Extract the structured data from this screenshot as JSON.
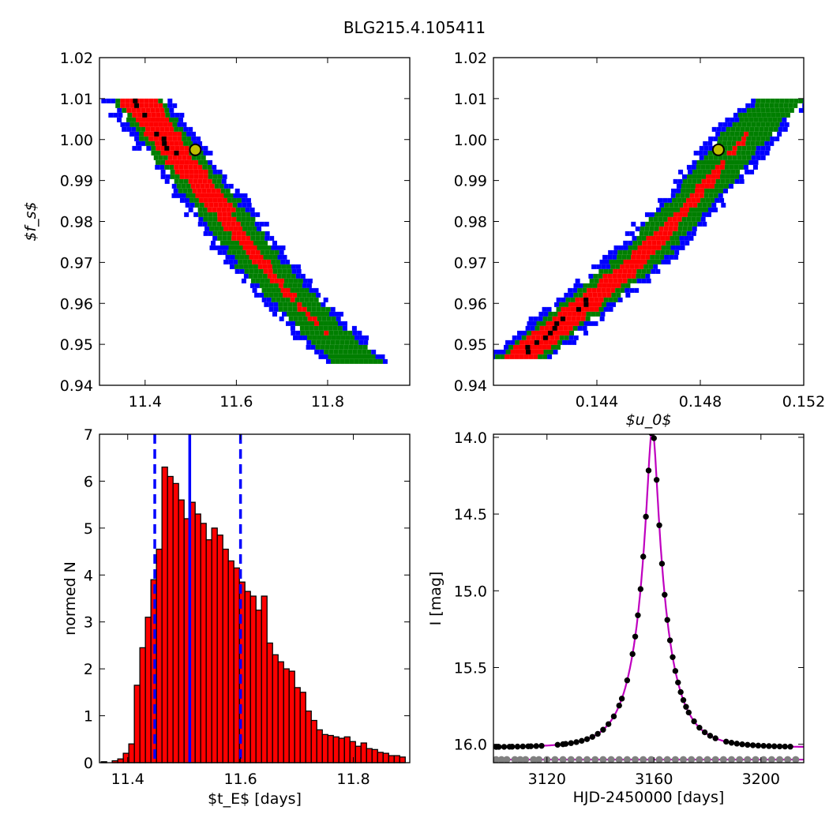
{
  "title": "BLG215.4.105411",
  "colors": {
    "blue": "#0000ff",
    "green": "#007f00",
    "red": "#ff0000",
    "black": "#000000",
    "magenta": "#bf00bf",
    "gray": "#808080",
    "marker_face": "#bfbf00"
  },
  "chart_data": [
    {
      "id": "fs_vs_tE",
      "type": "heatmap",
      "title": "",
      "xlabel": "",
      "ylabel": "$f_s$",
      "xlim": [
        11.3,
        11.98
      ],
      "ylim": [
        0.94,
        1.02
      ],
      "xticks": [
        11.4,
        11.6,
        11.8
      ],
      "xticklabels": [
        "11.4",
        "11.6",
        "11.8"
      ],
      "yticks": [
        0.94,
        0.95,
        0.96,
        0.97,
        0.98,
        0.99,
        1.0,
        1.01,
        1.02
      ],
      "yticklabels": [
        "0.94",
        "0.95",
        "0.96",
        "0.97",
        "0.98",
        "0.99",
        "1.00",
        "1.01",
        "1.02"
      ],
      "confidence_band": {
        "centerline": [
          [
            11.38,
            1.01
          ],
          [
            11.45,
            0.999
          ],
          [
            11.55,
            0.985
          ],
          [
            11.65,
            0.97
          ],
          [
            11.75,
            0.958
          ],
          [
            11.86,
            0.946
          ]
        ],
        "levels": [
          "blue",
          "green",
          "red",
          "black"
        ]
      },
      "best_fit": {
        "x": 11.51,
        "y": 0.9975
      }
    },
    {
      "id": "fs_vs_u0",
      "type": "heatmap",
      "title": "",
      "xlabel": "$u_0$",
      "ylabel": "",
      "xlim": [
        0.14,
        0.152
      ],
      "ylim": [
        0.94,
        1.02
      ],
      "xticks": [
        0.144,
        0.148,
        0.152
      ],
      "xticklabels": [
        "0.144",
        "0.148",
        "0.152"
      ],
      "yticks": [
        0.94,
        0.95,
        0.96,
        0.97,
        0.98,
        0.99,
        1.0,
        1.01,
        1.02
      ],
      "yticklabels": [
        "0.94",
        "0.95",
        "0.96",
        "0.97",
        "0.98",
        "0.99",
        "1.00",
        "1.01",
        "1.02"
      ],
      "confidence_band": {
        "centerline": [
          [
            0.1409,
            0.947
          ],
          [
            0.1432,
            0.959
          ],
          [
            0.1455,
            0.971
          ],
          [
            0.1478,
            0.987
          ],
          [
            0.15,
            1.004
          ],
          [
            0.151,
            1.01
          ]
        ],
        "levels": [
          "blue",
          "green",
          "red",
          "black"
        ]
      },
      "best_fit": {
        "x": 0.1487,
        "y": 0.9975
      }
    },
    {
      "id": "tE_histogram",
      "type": "bar",
      "title": "",
      "xlabel": "$t_E$ [days]",
      "ylabel": "normed N",
      "xlim": [
        11.35,
        11.9
      ],
      "ylim": [
        0,
        7
      ],
      "xticks": [
        11.4,
        11.6,
        11.8
      ],
      "xticklabels": [
        "11.4",
        "11.6",
        "11.8"
      ],
      "yticks": [
        0,
        1,
        2,
        3,
        4,
        5,
        6,
        7
      ],
      "yticklabels": [
        "0",
        "1",
        "2",
        "3",
        "4",
        "5",
        "6",
        "7"
      ],
      "bin_width": 0.0098,
      "bin_start": 11.353,
      "values": [
        0.02,
        0.0,
        0.04,
        0.08,
        0.2,
        0.4,
        1.65,
        2.45,
        3.1,
        3.9,
        4.55,
        6.3,
        6.1,
        5.95,
        5.6,
        5.2,
        5.55,
        5.3,
        5.1,
        4.75,
        5.0,
        4.85,
        4.55,
        4.3,
        4.15,
        3.85,
        3.65,
        3.55,
        3.25,
        3.55,
        2.55,
        2.3,
        2.15,
        2.0,
        1.95,
        1.6,
        1.5,
        1.1,
        0.9,
        0.7,
        0.6,
        0.58,
        0.55,
        0.52,
        0.55,
        0.45,
        0.35,
        0.42,
        0.3,
        0.28,
        0.22,
        0.2,
        0.15,
        0.15,
        0.12,
        0.12,
        0.08,
        0.06,
        0.02,
        0.04,
        0.02
      ],
      "vlines": [
        {
          "x": 11.51,
          "style": "solid"
        },
        {
          "x": 11.448,
          "style": "dashed"
        },
        {
          "x": 11.6,
          "style": "dashed"
        }
      ]
    },
    {
      "id": "lightcurve",
      "type": "scatter",
      "title": "",
      "xlabel": "HJD-2450000 [days]",
      "ylabel": "I [mag]",
      "xlim": [
        3100,
        3216
      ],
      "ylim": [
        16.12,
        13.98
      ],
      "xticks": [
        3120,
        3160,
        3200
      ],
      "xticklabels": [
        "3120",
        "3160",
        "3200"
      ],
      "yticks": [
        14.0,
        14.5,
        15.0,
        15.5,
        16.0
      ],
      "yticklabels": [
        "14.0",
        "14.5",
        "15.0",
        "15.5",
        "16.0"
      ],
      "model": {
        "t0": 3159.4,
        "tE": 11.51,
        "u0": 0.1487,
        "fs": 0.9975,
        "baseline": 16.02
      },
      "observations_x": [
        3101,
        3102,
        3104,
        3106,
        3107,
        3109,
        3111,
        3113,
        3114,
        3116,
        3118,
        3124,
        3126,
        3127,
        3129,
        3131,
        3133,
        3135,
        3137,
        3139,
        3141,
        3143,
        3145,
        3147,
        3148,
        3150,
        3152,
        3153,
        3154,
        3155,
        3156,
        3157,
        3158,
        3159,
        3160,
        3161,
        3162,
        3163,
        3164,
        3165,
        3166,
        3167,
        3168,
        3169,
        3170,
        3171,
        3172,
        3173,
        3175,
        3177,
        3179,
        3181,
        3183,
        3187,
        3189,
        3191,
        3193,
        3195,
        3197,
        3199,
        3201,
        3203,
        3205,
        3207,
        3209,
        3211
      ],
      "residual_line": 16.1,
      "residual_x": [
        3101,
        3103,
        3105,
        3108,
        3110,
        3112,
        3115,
        3117,
        3120,
        3123,
        3126,
        3129,
        3132,
        3135,
        3138,
        3141,
        3144,
        3147,
        3150,
        3153,
        3156,
        3159,
        3162,
        3165,
        3168,
        3171,
        3174,
        3177,
        3180,
        3183,
        3186,
        3189,
        3192,
        3195,
        3198,
        3201,
        3204,
        3207,
        3210,
        3213
      ]
    }
  ]
}
